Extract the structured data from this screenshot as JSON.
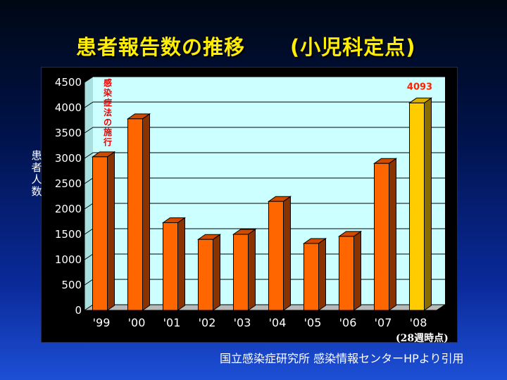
{
  "title": {
    "main": "患者報告数の推移",
    "sub": "(小児科定点)"
  },
  "ylabel_chars": [
    "患",
    "者",
    "人",
    "数"
  ],
  "note": "(28週時点)",
  "source": "国立感染症研究所 感染情報センターHPより引用",
  "annotation": "感染症法の施行",
  "colors": {
    "bar_front": "#ff6600",
    "bar_side": "#8a3300",
    "bar_top": "#d04a00",
    "highlight_front": "#ffcc00",
    "highlight_side": "#8a6d00",
    "highlight_top": "#ddb000",
    "plot_bg": "#ccffff",
    "floor": "#b8b8b8",
    "grid": "#000000",
    "data_label": "#ff2200",
    "annotation": "#ee0000"
  },
  "chart_data": {
    "type": "bar",
    "categories": [
      "'99",
      "'00",
      "'01",
      "'02",
      "'03",
      "'04",
      "'05",
      "'06",
      "'07",
      "'08"
    ],
    "values": [
      3030,
      3780,
      1730,
      1400,
      1500,
      2150,
      1320,
      1460,
      2900,
      4093
    ],
    "data_labels": [
      "",
      "",
      "",
      "",
      "",
      "",
      "",
      "",
      "",
      "4093"
    ],
    "highlight_index": 9,
    "ylim": [
      0,
      4500
    ],
    "yticks": [
      "0",
      "500",
      "1000",
      "1500",
      "2000",
      "2500",
      "3000",
      "3500",
      "4000",
      "4500"
    ],
    "ylabel": "患者人数",
    "grid": true,
    "style": "3d-bar"
  }
}
